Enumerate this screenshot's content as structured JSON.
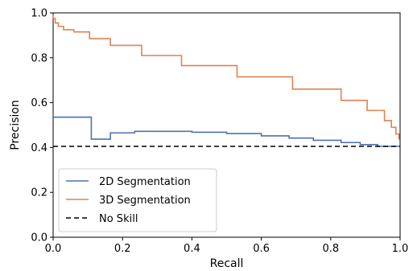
{
  "chart_data": {
    "type": "line",
    "xlabel": "Recall",
    "ylabel": "Precision",
    "xlim": [
      0.0,
      1.0
    ],
    "ylim": [
      0.0,
      1.0
    ],
    "xticks": [
      "0.0",
      "0.2",
      "0.4",
      "0.6",
      "0.8",
      "1.0"
    ],
    "yticks": [
      "0.0",
      "0.2",
      "0.4",
      "0.6",
      "0.8",
      "1.0"
    ],
    "grid": false,
    "legend_position": "lower-left",
    "series": [
      {
        "name": "2D Segmentation",
        "color": "#4c72b0",
        "line_style": "solid",
        "step": true,
        "x": [
          0.0,
          0.11,
          0.11,
          0.165,
          0.165,
          0.235,
          0.235,
          0.4,
          0.4,
          0.5,
          0.5,
          0.6,
          0.6,
          0.68,
          0.68,
          0.75,
          0.75,
          0.83,
          0.83,
          0.885,
          0.885,
          0.935,
          0.935,
          1.0
        ],
        "y": [
          0.535,
          0.535,
          0.437,
          0.437,
          0.465,
          0.465,
          0.472,
          0.472,
          0.468,
          0.468,
          0.462,
          0.462,
          0.452,
          0.452,
          0.442,
          0.442,
          0.432,
          0.432,
          0.422,
          0.422,
          0.413,
          0.413,
          0.405,
          0.405
        ]
      },
      {
        "name": "3D Segmentation",
        "color": "#dd8452",
        "line_style": "solid",
        "step": true,
        "x": [
          0.0,
          0.0,
          0.006,
          0.006,
          0.015,
          0.015,
          0.03,
          0.03,
          0.06,
          0.06,
          0.105,
          0.105,
          0.165,
          0.165,
          0.255,
          0.255,
          0.37,
          0.37,
          0.53,
          0.53,
          0.69,
          0.69,
          0.83,
          0.83,
          0.905,
          0.905,
          0.955,
          0.955,
          0.975,
          0.975,
          0.988,
          0.988,
          0.997,
          0.997,
          1.0
        ],
        "y": [
          0.99,
          0.975,
          0.975,
          0.955,
          0.955,
          0.94,
          0.94,
          0.925,
          0.925,
          0.915,
          0.915,
          0.885,
          0.885,
          0.855,
          0.855,
          0.81,
          0.81,
          0.765,
          0.765,
          0.715,
          0.715,
          0.66,
          0.66,
          0.61,
          0.61,
          0.565,
          0.565,
          0.52,
          0.52,
          0.49,
          0.49,
          0.46,
          0.46,
          0.435,
          0.435
        ]
      },
      {
        "name": "No Skill",
        "color": "#000000",
        "line_style": "dashed",
        "step": false,
        "x": [
          0.0,
          1.0
        ],
        "y": [
          0.405,
          0.405
        ]
      }
    ]
  }
}
